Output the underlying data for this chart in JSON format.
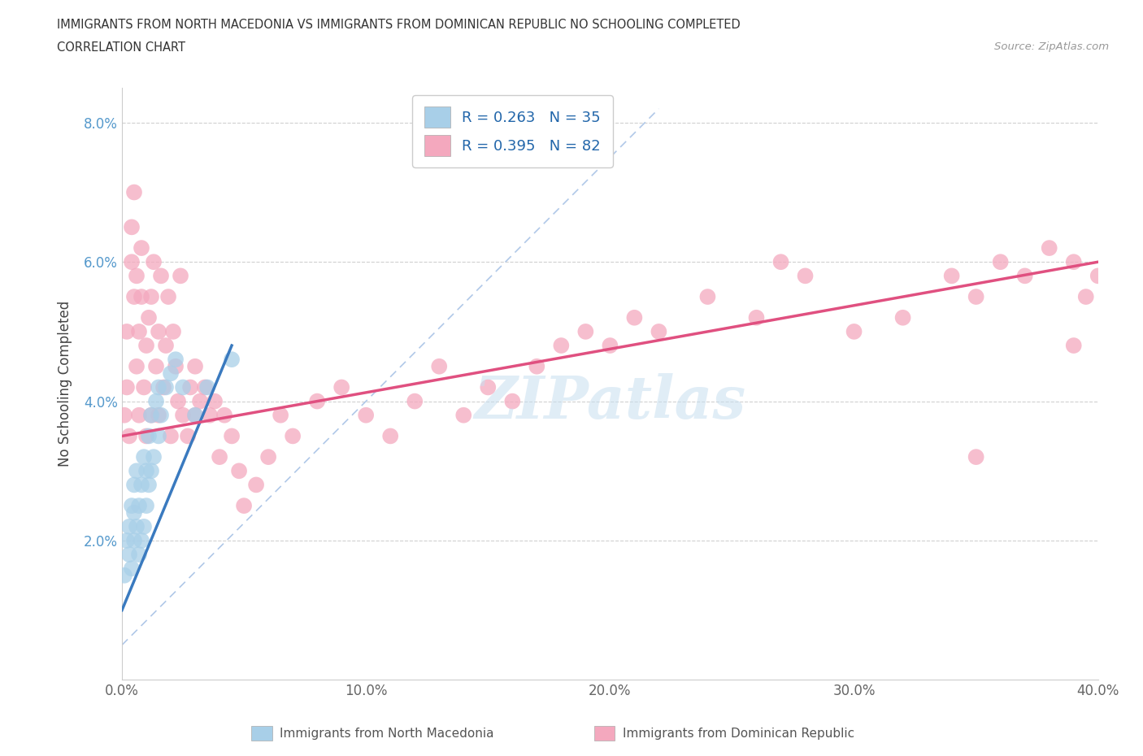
{
  "title_line1": "IMMIGRANTS FROM NORTH MACEDONIA VS IMMIGRANTS FROM DOMINICAN REPUBLIC NO SCHOOLING COMPLETED",
  "title_line2": "CORRELATION CHART",
  "source": "Source: ZipAtlas.com",
  "ylabel": "No Schooling Completed",
  "xlim": [
    0.0,
    0.4
  ],
  "ylim": [
    0.0,
    0.085
  ],
  "xticks": [
    0.0,
    0.1,
    0.2,
    0.3,
    0.4
  ],
  "xticklabels": [
    "0.0%",
    "10.0%",
    "20.0%",
    "30.0%",
    "40.0%"
  ],
  "yticks": [
    0.0,
    0.02,
    0.04,
    0.06,
    0.08
  ],
  "yticklabels": [
    "",
    "2.0%",
    "4.0%",
    "6.0%",
    "8.0%"
  ],
  "legend_r1": "R = 0.263",
  "legend_n1": "N = 35",
  "legend_r2": "R = 0.395",
  "legend_n2": "N = 82",
  "color_blue": "#a8cfe8",
  "color_pink": "#f4a8be",
  "color_blue_line": "#3a7abf",
  "color_pink_line": "#e05080",
  "color_blue_dashed": "#b0c8e8",
  "watermark_text": "ZIPatlas",
  "north_mac_x": [
    0.001,
    0.002,
    0.003,
    0.003,
    0.004,
    0.004,
    0.005,
    0.005,
    0.005,
    0.006,
    0.006,
    0.007,
    0.007,
    0.008,
    0.008,
    0.009,
    0.009,
    0.01,
    0.01,
    0.011,
    0.011,
    0.012,
    0.012,
    0.013,
    0.014,
    0.015,
    0.015,
    0.016,
    0.018,
    0.02,
    0.022,
    0.025,
    0.03,
    0.035,
    0.045
  ],
  "north_mac_y": [
    0.015,
    0.02,
    0.018,
    0.022,
    0.016,
    0.025,
    0.02,
    0.024,
    0.028,
    0.022,
    0.03,
    0.018,
    0.025,
    0.02,
    0.028,
    0.022,
    0.032,
    0.025,
    0.03,
    0.028,
    0.035,
    0.03,
    0.038,
    0.032,
    0.04,
    0.035,
    0.042,
    0.038,
    0.042,
    0.044,
    0.046,
    0.042,
    0.038,
    0.042,
    0.046
  ],
  "dominican_x": [
    0.001,
    0.002,
    0.002,
    0.003,
    0.004,
    0.004,
    0.005,
    0.005,
    0.006,
    0.006,
    0.007,
    0.007,
    0.008,
    0.008,
    0.009,
    0.01,
    0.01,
    0.011,
    0.012,
    0.012,
    0.013,
    0.014,
    0.015,
    0.015,
    0.016,
    0.017,
    0.018,
    0.019,
    0.02,
    0.021,
    0.022,
    0.023,
    0.024,
    0.025,
    0.027,
    0.028,
    0.03,
    0.03,
    0.032,
    0.034,
    0.036,
    0.038,
    0.04,
    0.042,
    0.045,
    0.048,
    0.05,
    0.055,
    0.06,
    0.065,
    0.07,
    0.08,
    0.09,
    0.1,
    0.11,
    0.12,
    0.13,
    0.14,
    0.15,
    0.16,
    0.17,
    0.18,
    0.19,
    0.2,
    0.21,
    0.22,
    0.24,
    0.26,
    0.27,
    0.28,
    0.3,
    0.32,
    0.34,
    0.35,
    0.36,
    0.37,
    0.38,
    0.39,
    0.395,
    0.4,
    0.39,
    0.35
  ],
  "dominican_y": [
    0.038,
    0.042,
    0.05,
    0.035,
    0.06,
    0.065,
    0.055,
    0.07,
    0.045,
    0.058,
    0.038,
    0.05,
    0.055,
    0.062,
    0.042,
    0.035,
    0.048,
    0.052,
    0.038,
    0.055,
    0.06,
    0.045,
    0.038,
    0.05,
    0.058,
    0.042,
    0.048,
    0.055,
    0.035,
    0.05,
    0.045,
    0.04,
    0.058,
    0.038,
    0.035,
    0.042,
    0.038,
    0.045,
    0.04,
    0.042,
    0.038,
    0.04,
    0.032,
    0.038,
    0.035,
    0.03,
    0.025,
    0.028,
    0.032,
    0.038,
    0.035,
    0.04,
    0.042,
    0.038,
    0.035,
    0.04,
    0.045,
    0.038,
    0.042,
    0.04,
    0.045,
    0.048,
    0.05,
    0.048,
    0.052,
    0.05,
    0.055,
    0.052,
    0.06,
    0.058,
    0.05,
    0.052,
    0.058,
    0.055,
    0.06,
    0.058,
    0.062,
    0.06,
    0.055,
    0.058,
    0.048,
    0.032
  ],
  "blue_line_x": [
    0.0,
    0.045
  ],
  "blue_line_y": [
    0.01,
    0.048
  ],
  "pink_line_x": [
    0.0,
    0.4
  ],
  "pink_line_y": [
    0.035,
    0.06
  ],
  "dashed_line_x": [
    0.0,
    0.22
  ],
  "dashed_line_y": [
    0.005,
    0.082
  ]
}
